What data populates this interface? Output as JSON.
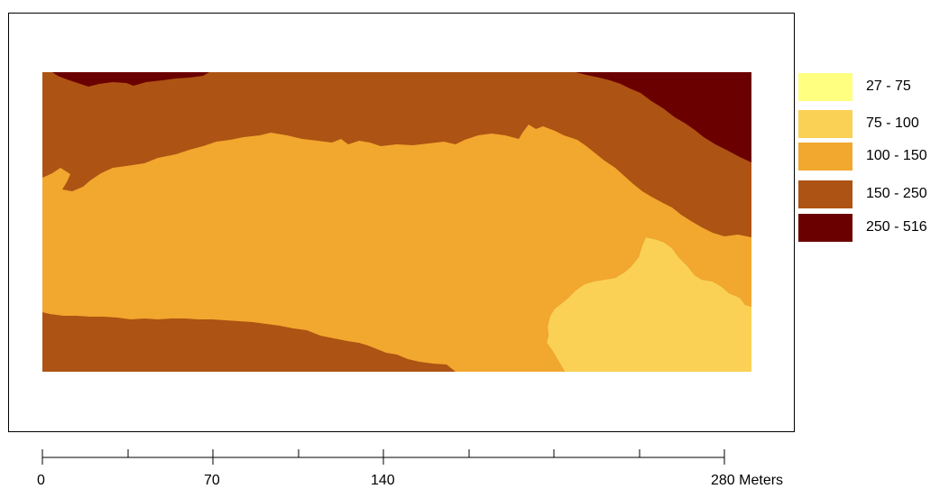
{
  "legend": {
    "items": [
      {
        "label": "27 - 75",
        "color": "#FFFF80"
      },
      {
        "label": "75 - 100",
        "color": "#FAD155"
      },
      {
        "label": "100 - 150",
        "color": "#F2A72E"
      },
      {
        "label": "150 - 250",
        "color": "#AD5313"
      },
      {
        "label": "250 - 516",
        "color": "#6B0000"
      }
    ]
  },
  "scale_bar": {
    "labels": [
      "0",
      "70",
      "140",
      "280 Meters"
    ],
    "unit": "Meters"
  }
}
